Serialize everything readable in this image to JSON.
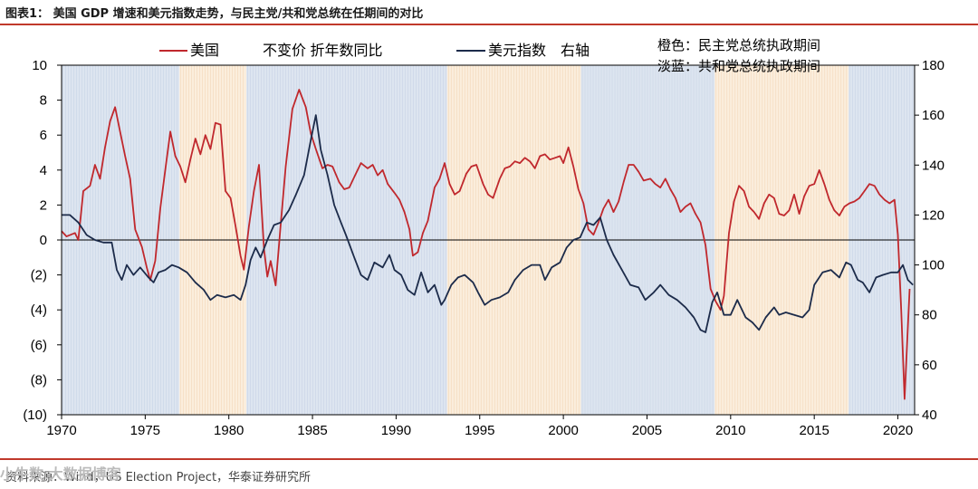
{
  "header": {
    "title": "图表1： 美国 GDP 增速和美元指数走势，与民主党/共和党总统在任期间的对比"
  },
  "footer": {
    "source": "资料来源：Wind，US Election Project，华泰证券研究所",
    "watermark": "小牛数 大数据博客"
  },
  "chart_data": {
    "type": "line",
    "title": "美国 GDP 增速和美元指数走势，与民主党/共和党总统在任期间的对比",
    "x_range": [
      1970,
      2021
    ],
    "x_ticks": [
      "1970",
      "1975",
      "1980",
      "1985",
      "1990",
      "1995",
      "2000",
      "2005",
      "2010",
      "2015",
      "2020"
    ],
    "y_left": {
      "range": [
        -10,
        10
      ],
      "ticks": [
        "10",
        "8",
        "6",
        "4",
        "2",
        "0",
        "(2)",
        "(4)",
        "(6)",
        "(8)",
        "(10)"
      ]
    },
    "y_right": {
      "range": [
        40,
        180
      ],
      "ticks": [
        "180",
        "160",
        "140",
        "120",
        "100",
        "80",
        "60",
        "40"
      ]
    },
    "legend": {
      "gdp": "美国　　　不变价 折年数同比",
      "dxy": "美元指数　右轴",
      "orange_note": "橙色：民主党总统执政期间",
      "blue_note": "淡蓝：共和党总统执政期间"
    },
    "colors": {
      "gdp": "#c0282d",
      "dxy": "#1c2b4a",
      "democrat": "#fbeedd",
      "republican": "#dde5f0",
      "zero": "#000000"
    },
    "periods": [
      {
        "party": "republican",
        "start": 1970,
        "end": 1977.05
      },
      {
        "party": "democrat",
        "start": 1977.05,
        "end": 1981.05
      },
      {
        "party": "republican",
        "start": 1981.05,
        "end": 1993.05
      },
      {
        "party": "democrat",
        "start": 1993.05,
        "end": 2001.05
      },
      {
        "party": "republican",
        "start": 2001.05,
        "end": 2009.05
      },
      {
        "party": "democrat",
        "start": 2009.05,
        "end": 2017.05
      },
      {
        "party": "republican",
        "start": 2017.05,
        "end": 2021
      }
    ],
    "series": [
      {
        "name": "美国 不变价 折年数同比",
        "axis": "left",
        "points": [
          [
            1970.0,
            0.5
          ],
          [
            1970.3,
            0.2
          ],
          [
            1970.8,
            0.4
          ],
          [
            1971.0,
            0.0
          ],
          [
            1971.3,
            2.8
          ],
          [
            1971.7,
            3.1
          ],
          [
            1972.0,
            4.3
          ],
          [
            1972.3,
            3.5
          ],
          [
            1972.6,
            5.3
          ],
          [
            1972.9,
            6.8
          ],
          [
            1973.2,
            7.6
          ],
          [
            1973.5,
            6.2
          ],
          [
            1973.8,
            4.8
          ],
          [
            1974.1,
            3.5
          ],
          [
            1974.4,
            0.6
          ],
          [
            1974.8,
            -0.4
          ],
          [
            1975.1,
            -1.6
          ],
          [
            1975.3,
            -2.3
          ],
          [
            1975.6,
            -1.2
          ],
          [
            1975.9,
            1.8
          ],
          [
            1976.2,
            4.0
          ],
          [
            1976.5,
            6.2
          ],
          [
            1976.8,
            4.8
          ],
          [
            1977.1,
            4.2
          ],
          [
            1977.4,
            3.3
          ],
          [
            1977.7,
            4.6
          ],
          [
            1978.0,
            5.8
          ],
          [
            1978.3,
            4.9
          ],
          [
            1978.6,
            6.0
          ],
          [
            1978.9,
            5.2
          ],
          [
            1979.2,
            6.7
          ],
          [
            1979.5,
            6.6
          ],
          [
            1979.8,
            2.8
          ],
          [
            1980.1,
            2.4
          ],
          [
            1980.4,
            0.8
          ],
          [
            1980.7,
            -0.9
          ],
          [
            1980.9,
            -1.7
          ],
          [
            1981.2,
            0.8
          ],
          [
            1981.5,
            2.8
          ],
          [
            1981.8,
            4.3
          ],
          [
            1982.1,
            -0.5
          ],
          [
            1982.3,
            -2.1
          ],
          [
            1982.5,
            -1.2
          ],
          [
            1982.8,
            -2.6
          ],
          [
            1983.1,
            0.9
          ],
          [
            1983.4,
            4.2
          ],
          [
            1983.8,
            7.5
          ],
          [
            1984.2,
            8.6
          ],
          [
            1984.6,
            7.6
          ],
          [
            1984.9,
            6.1
          ],
          [
            1985.2,
            5.2
          ],
          [
            1985.6,
            4.1
          ],
          [
            1985.9,
            4.3
          ],
          [
            1986.2,
            4.2
          ],
          [
            1986.6,
            3.3
          ],
          [
            1986.9,
            2.9
          ],
          [
            1987.2,
            3.0
          ],
          [
            1987.5,
            3.6
          ],
          [
            1987.9,
            4.4
          ],
          [
            1988.3,
            4.1
          ],
          [
            1988.6,
            4.3
          ],
          [
            1988.9,
            3.7
          ],
          [
            1989.2,
            4.0
          ],
          [
            1989.5,
            3.2
          ],
          [
            1989.9,
            2.7
          ],
          [
            1990.2,
            2.3
          ],
          [
            1990.5,
            1.6
          ],
          [
            1990.8,
            0.6
          ],
          [
            1991.0,
            -0.9
          ],
          [
            1991.3,
            -0.7
          ],
          [
            1991.6,
            0.4
          ],
          [
            1991.9,
            1.1
          ],
          [
            1992.3,
            3.0
          ],
          [
            1992.6,
            3.5
          ],
          [
            1992.9,
            4.4
          ],
          [
            1993.2,
            3.2
          ],
          [
            1993.5,
            2.6
          ],
          [
            1993.8,
            2.8
          ],
          [
            1994.2,
            3.8
          ],
          [
            1994.5,
            4.2
          ],
          [
            1994.8,
            4.3
          ],
          [
            1995.2,
            3.2
          ],
          [
            1995.5,
            2.6
          ],
          [
            1995.8,
            2.4
          ],
          [
            1996.2,
            3.5
          ],
          [
            1996.5,
            4.1
          ],
          [
            1996.8,
            4.2
          ],
          [
            1997.1,
            4.5
          ],
          [
            1997.4,
            4.4
          ],
          [
            1997.7,
            4.7
          ],
          [
            1998.0,
            4.5
          ],
          [
            1998.3,
            4.1
          ],
          [
            1998.6,
            4.8
          ],
          [
            1998.9,
            4.9
          ],
          [
            1999.2,
            4.6
          ],
          [
            1999.5,
            4.7
          ],
          [
            1999.8,
            4.8
          ],
          [
            2000.0,
            4.4
          ],
          [
            2000.3,
            5.3
          ],
          [
            2000.6,
            4.2
          ],
          [
            2000.9,
            2.9
          ],
          [
            2001.2,
            2.1
          ],
          [
            2001.5,
            0.6
          ],
          [
            2001.8,
            0.3
          ],
          [
            2002.1,
            1.0
          ],
          [
            2002.4,
            1.8
          ],
          [
            2002.7,
            2.3
          ],
          [
            2003.0,
            1.6
          ],
          [
            2003.3,
            2.2
          ],
          [
            2003.6,
            3.3
          ],
          [
            2003.9,
            4.3
          ],
          [
            2004.2,
            4.3
          ],
          [
            2004.5,
            3.9
          ],
          [
            2004.8,
            3.4
          ],
          [
            2005.2,
            3.5
          ],
          [
            2005.5,
            3.2
          ],
          [
            2005.8,
            3.0
          ],
          [
            2006.1,
            3.5
          ],
          [
            2006.4,
            2.9
          ],
          [
            2006.7,
            2.4
          ],
          [
            2007.0,
            1.6
          ],
          [
            2007.3,
            1.9
          ],
          [
            2007.6,
            2.1
          ],
          [
            2007.9,
            1.5
          ],
          [
            2008.2,
            1.0
          ],
          [
            2008.5,
            -0.3
          ],
          [
            2008.8,
            -2.8
          ],
          [
            2009.1,
            -3.5
          ],
          [
            2009.4,
            -4.0
          ],
          [
            2009.6,
            -3.2
          ],
          [
            2009.9,
            0.4
          ],
          [
            2010.2,
            2.2
          ],
          [
            2010.5,
            3.1
          ],
          [
            2010.8,
            2.8
          ],
          [
            2011.1,
            1.9
          ],
          [
            2011.4,
            1.6
          ],
          [
            2011.7,
            1.2
          ],
          [
            2012.0,
            2.1
          ],
          [
            2012.3,
            2.6
          ],
          [
            2012.6,
            2.4
          ],
          [
            2012.9,
            1.5
          ],
          [
            2013.2,
            1.4
          ],
          [
            2013.5,
            1.7
          ],
          [
            2013.8,
            2.6
          ],
          [
            2014.1,
            1.5
          ],
          [
            2014.4,
            2.5
          ],
          [
            2014.7,
            3.1
          ],
          [
            2015.0,
            3.2
          ],
          [
            2015.3,
            4.0
          ],
          [
            2015.6,
            3.2
          ],
          [
            2015.9,
            2.3
          ],
          [
            2016.2,
            1.7
          ],
          [
            2016.5,
            1.4
          ],
          [
            2016.8,
            1.9
          ],
          [
            2017.1,
            2.1
          ],
          [
            2017.4,
            2.2
          ],
          [
            2017.7,
            2.4
          ],
          [
            2018.0,
            2.8
          ],
          [
            2018.3,
            3.2
          ],
          [
            2018.6,
            3.1
          ],
          [
            2018.9,
            2.6
          ],
          [
            2019.2,
            2.3
          ],
          [
            2019.5,
            2.1
          ],
          [
            2019.8,
            2.3
          ],
          [
            2020.0,
            0.3
          ],
          [
            2020.2,
            -4.0
          ],
          [
            2020.4,
            -9.1
          ],
          [
            2020.7,
            -2.8
          ]
        ]
      },
      {
        "name": "美元指数 右轴",
        "axis": "right",
        "points": [
          [
            1970.0,
            120
          ],
          [
            1970.5,
            120
          ],
          [
            1971.0,
            117
          ],
          [
            1971.5,
            112
          ],
          [
            1972.0,
            110
          ],
          [
            1972.5,
            109
          ],
          [
            1973.0,
            109
          ],
          [
            1973.3,
            98
          ],
          [
            1973.6,
            94
          ],
          [
            1973.9,
            100
          ],
          [
            1974.3,
            96
          ],
          [
            1974.7,
            99
          ],
          [
            1975.2,
            95
          ],
          [
            1975.5,
            93
          ],
          [
            1975.8,
            97
          ],
          [
            1976.2,
            98
          ],
          [
            1976.6,
            100
          ],
          [
            1977.0,
            99
          ],
          [
            1977.5,
            97
          ],
          [
            1978.0,
            93
          ],
          [
            1978.5,
            90
          ],
          [
            1978.9,
            86
          ],
          [
            1979.3,
            88
          ],
          [
            1979.8,
            87
          ],
          [
            1980.3,
            88
          ],
          [
            1980.7,
            86
          ],
          [
            1981.0,
            92
          ],
          [
            1981.3,
            102
          ],
          [
            1981.6,
            107
          ],
          [
            1981.9,
            103
          ],
          [
            1982.3,
            110
          ],
          [
            1982.7,
            116
          ],
          [
            1983.1,
            117
          ],
          [
            1983.6,
            122
          ],
          [
            1984.0,
            128
          ],
          [
            1984.5,
            136
          ],
          [
            1984.9,
            150
          ],
          [
            1985.2,
            160
          ],
          [
            1985.5,
            146
          ],
          [
            1985.9,
            136
          ],
          [
            1986.3,
            124
          ],
          [
            1986.7,
            117
          ],
          [
            1987.0,
            112
          ],
          [
            1987.5,
            103
          ],
          [
            1987.9,
            96
          ],
          [
            1988.3,
            94
          ],
          [
            1988.7,
            101
          ],
          [
            1989.2,
            99
          ],
          [
            1989.6,
            104
          ],
          [
            1989.9,
            98
          ],
          [
            1990.3,
            96
          ],
          [
            1990.7,
            90
          ],
          [
            1991.1,
            88
          ],
          [
            1991.5,
            97
          ],
          [
            1991.9,
            89
          ],
          [
            1992.3,
            92
          ],
          [
            1992.7,
            84
          ],
          [
            1992.9,
            86
          ],
          [
            1993.3,
            92
          ],
          [
            1993.7,
            95
          ],
          [
            1994.1,
            96
          ],
          [
            1994.6,
            93
          ],
          [
            1994.9,
            89
          ],
          [
            1995.3,
            84
          ],
          [
            1995.7,
            86
          ],
          [
            1996.2,
            87
          ],
          [
            1996.7,
            89
          ],
          [
            1997.1,
            94
          ],
          [
            1997.6,
            98
          ],
          [
            1998.1,
            100
          ],
          [
            1998.6,
            100
          ],
          [
            1998.9,
            94
          ],
          [
            1999.3,
            99
          ],
          [
            1999.8,
            101
          ],
          [
            2000.2,
            107
          ],
          [
            2000.6,
            110
          ],
          [
            2001.0,
            111
          ],
          [
            2001.4,
            117
          ],
          [
            2001.8,
            116
          ],
          [
            2002.2,
            119
          ],
          [
            2002.6,
            110
          ],
          [
            2003.0,
            104
          ],
          [
            2003.5,
            98
          ],
          [
            2004.0,
            92
          ],
          [
            2004.5,
            91
          ],
          [
            2004.9,
            86
          ],
          [
            2005.4,
            89
          ],
          [
            2005.8,
            92
          ],
          [
            2006.3,
            88
          ],
          [
            2006.8,
            86
          ],
          [
            2007.3,
            83
          ],
          [
            2007.8,
            79
          ],
          [
            2008.2,
            74
          ],
          [
            2008.5,
            73
          ],
          [
            2008.9,
            85
          ],
          [
            2009.2,
            89
          ],
          [
            2009.6,
            80
          ],
          [
            2010.0,
            80
          ],
          [
            2010.4,
            86
          ],
          [
            2010.9,
            79
          ],
          [
            2011.3,
            77
          ],
          [
            2011.7,
            74
          ],
          [
            2012.1,
            79
          ],
          [
            2012.6,
            83
          ],
          [
            2012.9,
            80
          ],
          [
            2013.3,
            81
          ],
          [
            2013.8,
            80
          ],
          [
            2014.3,
            79
          ],
          [
            2014.7,
            82
          ],
          [
            2015.0,
            92
          ],
          [
            2015.5,
            97
          ],
          [
            2016.0,
            98
          ],
          [
            2016.5,
            95
          ],
          [
            2016.9,
            101
          ],
          [
            2017.2,
            100
          ],
          [
            2017.6,
            94
          ],
          [
            2017.9,
            93
          ],
          [
            2018.3,
            89
          ],
          [
            2018.7,
            95
          ],
          [
            2019.1,
            96
          ],
          [
            2019.6,
            97
          ],
          [
            2020.0,
            97
          ],
          [
            2020.3,
            100
          ],
          [
            2020.6,
            94
          ],
          [
            2020.9,
            92
          ]
        ]
      }
    ]
  }
}
